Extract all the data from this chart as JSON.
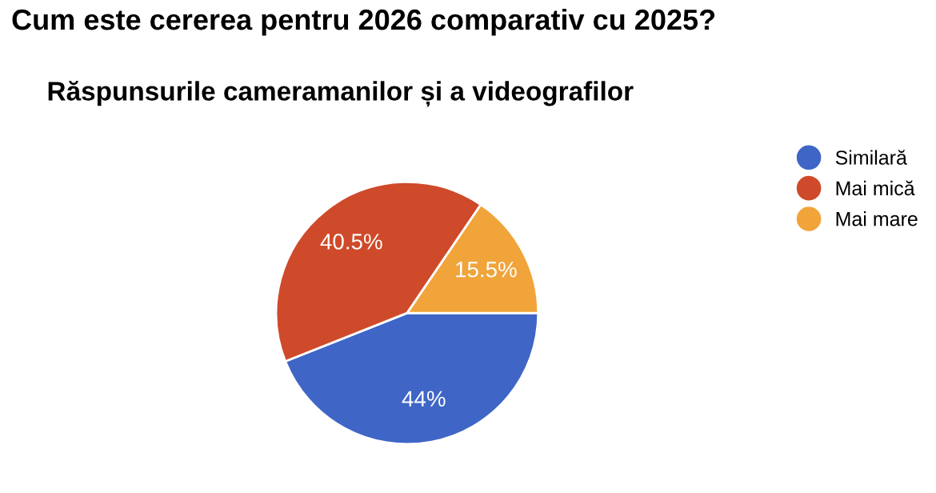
{
  "chart_data": {
    "type": "pie",
    "title": "Cum este cererea pentru 2026 comparativ cu 2025?",
    "subtitle": "Răspunsurile cameramanilor și a videografilor",
    "categories": [
      "Similară",
      "Mai mică",
      "Mai mare"
    ],
    "values": [
      44,
      40.5,
      15.5
    ],
    "value_labels": [
      "44%",
      "40.5%",
      "15.5%"
    ],
    "colors": [
      "#3f66c6",
      "#cf4a2a",
      "#f1a43a"
    ],
    "legend": "right"
  }
}
